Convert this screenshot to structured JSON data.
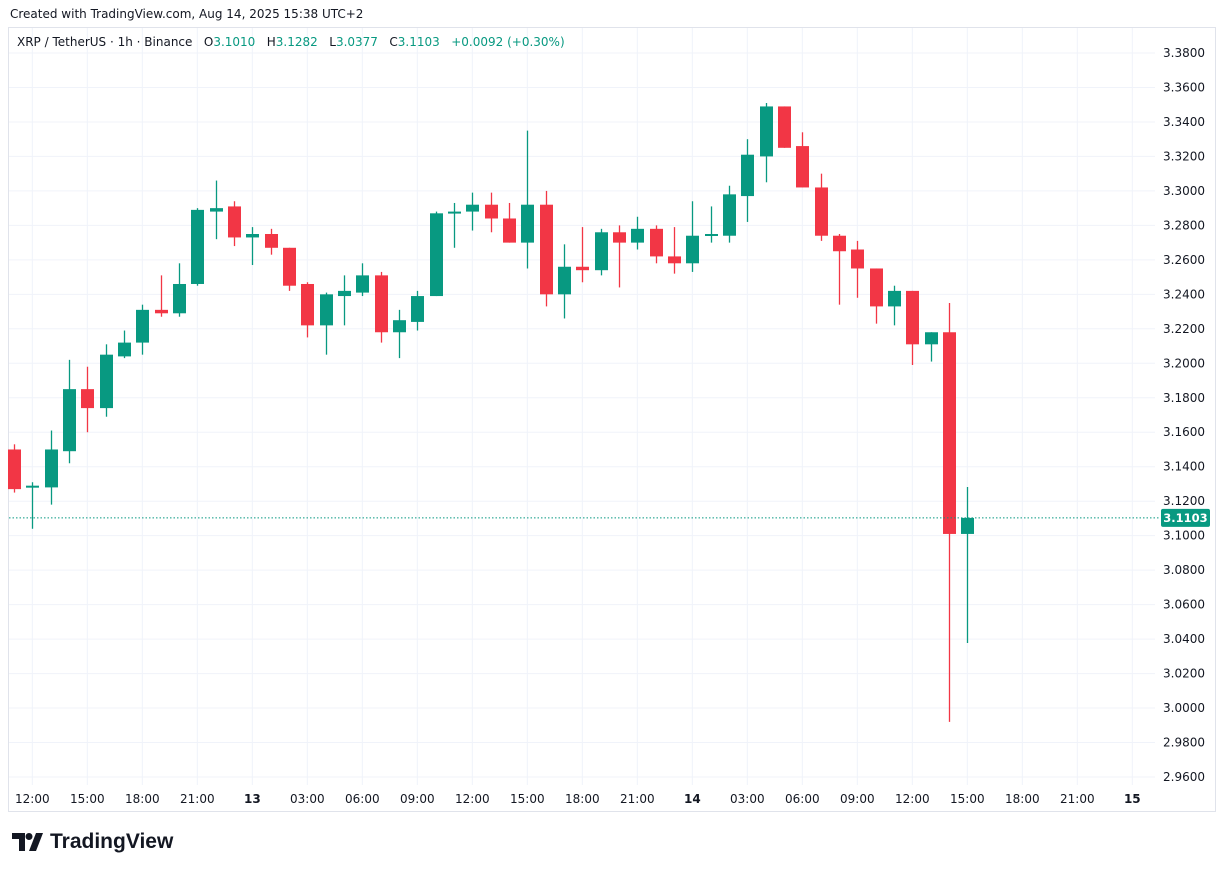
{
  "header": {
    "created": "Created with TradingView.com, Aug 14, 2025 15:38 UTC+2"
  },
  "legend": {
    "symbol": "XRP / TetherUS · 1h · Binance",
    "o_label": "O",
    "o": "3.1010",
    "h_label": "H",
    "h": "3.1282",
    "l_label": "L",
    "l": "3.0377",
    "c_label": "C",
    "c": "3.1103",
    "change": "+0.0092 (+0.30%)"
  },
  "colors": {
    "up": "#089981",
    "down": "#f23645",
    "grid": "#f0f3fa"
  },
  "logo": {
    "text": "TradingView"
  },
  "chart_data": {
    "type": "candlestick",
    "title": "XRP / TetherUS · 1h · Binance",
    "interval": "1h",
    "start": "Aug 12 11:00",
    "ylim": [
      2.96,
      3.38
    ],
    "grid": true,
    "y_ticks": [
      "3.3800",
      "3.3600",
      "3.3400",
      "3.3200",
      "3.3000",
      "3.2800",
      "3.2600",
      "3.2400",
      "3.2200",
      "3.2000",
      "3.1800",
      "3.1600",
      "3.1400",
      "3.1200",
      "3.1000",
      "3.0800",
      "3.0600",
      "3.0400",
      "3.0200",
      "3.0000",
      "2.9800",
      "2.9600"
    ],
    "x_ticks": [
      {
        "label": "12:00",
        "hour": 1
      },
      {
        "label": "15:00",
        "hour": 4
      },
      {
        "label": "18:00",
        "hour": 7
      },
      {
        "label": "21:00",
        "hour": 10
      },
      {
        "label": "13",
        "hour": 13
      },
      {
        "label": "03:00",
        "hour": 16
      },
      {
        "label": "06:00",
        "hour": 19
      },
      {
        "label": "09:00",
        "hour": 22
      },
      {
        "label": "12:00",
        "hour": 25
      },
      {
        "label": "15:00",
        "hour": 28
      },
      {
        "label": "18:00",
        "hour": 31
      },
      {
        "label": "21:00",
        "hour": 34
      },
      {
        "label": "14",
        "hour": 37
      },
      {
        "label": "03:00",
        "hour": 40
      },
      {
        "label": "06:00",
        "hour": 43
      },
      {
        "label": "09:00",
        "hour": 46
      },
      {
        "label": "12:00",
        "hour": 49
      },
      {
        "label": "15:00",
        "hour": 52
      },
      {
        "label": "18:00",
        "hour": 55
      },
      {
        "label": "21:00",
        "hour": 58
      },
      {
        "label": "15",
        "hour": 61
      }
    ],
    "last_price": {
      "value": 3.1103,
      "label": "3.1103"
    },
    "ohlc": [
      [
        3.15,
        3.153,
        3.125,
        3.127
      ],
      [
        3.128,
        3.131,
        3.104,
        3.129
      ],
      [
        3.128,
        3.161,
        3.118,
        3.15
      ],
      [
        3.149,
        3.202,
        3.142,
        3.185
      ],
      [
        3.185,
        3.198,
        3.16,
        3.174
      ],
      [
        3.174,
        3.211,
        3.169,
        3.205
      ],
      [
        3.204,
        3.219,
        3.203,
        3.212
      ],
      [
        3.212,
        3.234,
        3.205,
        3.231
      ],
      [
        3.231,
        3.251,
        3.227,
        3.229
      ],
      [
        3.229,
        3.258,
        3.227,
        3.246
      ],
      [
        3.246,
        3.29,
        3.245,
        3.289
      ],
      [
        3.288,
        3.306,
        3.272,
        3.29
      ],
      [
        3.291,
        3.294,
        3.268,
        3.273
      ],
      [
        3.273,
        3.279,
        3.257,
        3.275
      ],
      [
        3.275,
        3.278,
        3.263,
        3.267
      ],
      [
        3.267,
        3.267,
        3.242,
        3.245
      ],
      [
        3.246,
        3.247,
        3.215,
        3.222
      ],
      [
        3.222,
        3.241,
        3.205,
        3.24
      ],
      [
        3.239,
        3.251,
        3.222,
        3.242
      ],
      [
        3.241,
        3.258,
        3.239,
        3.251
      ],
      [
        3.251,
        3.253,
        3.212,
        3.218
      ],
      [
        3.218,
        3.231,
        3.203,
        3.225
      ],
      [
        3.224,
        3.242,
        3.219,
        3.239
      ],
      [
        3.239,
        3.288,
        3.239,
        3.287
      ],
      [
        3.287,
        3.293,
        3.267,
        3.288
      ],
      [
        3.288,
        3.299,
        3.277,
        3.292
      ],
      [
        3.292,
        3.299,
        3.276,
        3.284
      ],
      [
        3.284,
        3.293,
        3.27,
        3.27
      ],
      [
        3.27,
        3.335,
        3.255,
        3.292
      ],
      [
        3.292,
        3.3,
        3.233,
        3.24
      ],
      [
        3.24,
        3.269,
        3.226,
        3.256
      ],
      [
        3.256,
        3.279,
        3.247,
        3.254
      ],
      [
        3.254,
        3.278,
        3.251,
        3.276
      ],
      [
        3.276,
        3.28,
        3.244,
        3.27
      ],
      [
        3.27,
        3.285,
        3.266,
        3.278
      ],
      [
        3.278,
        3.28,
        3.258,
        3.262
      ],
      [
        3.262,
        3.279,
        3.252,
        3.258
      ],
      [
        3.258,
        3.294,
        3.253,
        3.274
      ],
      [
        3.274,
        3.291,
        3.27,
        3.275
      ],
      [
        3.274,
        3.303,
        3.27,
        3.298
      ],
      [
        3.297,
        3.33,
        3.282,
        3.321
      ],
      [
        3.32,
        3.351,
        3.305,
        3.349
      ],
      [
        3.349,
        3.349,
        3.325,
        3.325
      ],
      [
        3.326,
        3.334,
        3.302,
        3.302
      ],
      [
        3.302,
        3.31,
        3.271,
        3.274
      ],
      [
        3.274,
        3.275,
        3.234,
        3.265
      ],
      [
        3.266,
        3.271,
        3.238,
        3.255
      ],
      [
        3.255,
        3.255,
        3.223,
        3.233
      ],
      [
        3.233,
        3.245,
        3.222,
        3.242
      ],
      [
        3.242,
        3.242,
        3.199,
        3.211
      ],
      [
        3.211,
        3.218,
        3.201,
        3.218
      ],
      [
        3.218,
        3.235,
        2.992,
        3.101
      ],
      [
        3.101,
        3.1282,
        3.0377,
        3.1103
      ]
    ]
  }
}
